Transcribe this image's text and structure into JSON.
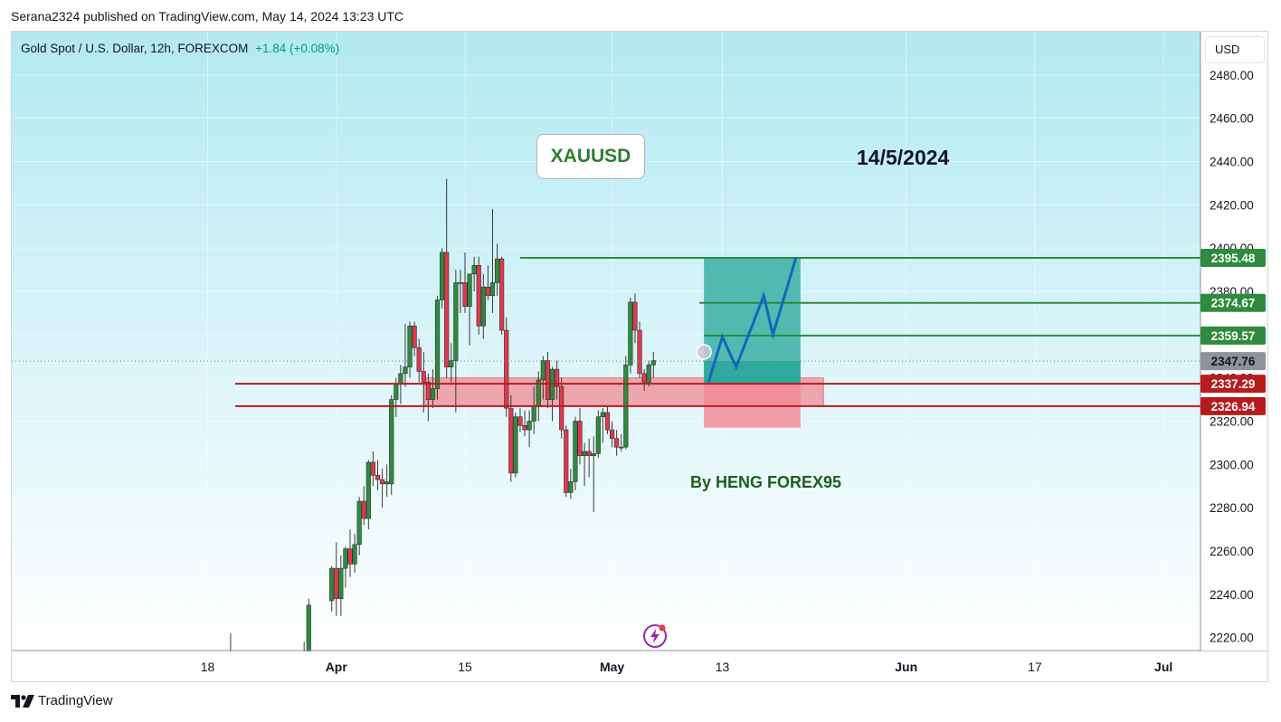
{
  "publisher_line": "Serana2324 published on TradingView.com, May 14, 2024 13:23 UTC",
  "header": {
    "symbol": "Gold Spot / U.S. Dollar, 12h, FOREXCOM",
    "change": "+1.84 (+0.08%)",
    "currency": "USD"
  },
  "annotations": {
    "ticker": "XAUUSD",
    "date": "14/5/2024",
    "author": "By HENG FOREX95"
  },
  "footer": {
    "brand": "TradingView"
  },
  "colors": {
    "bull": "#2e8b3e",
    "bear": "#e0384f",
    "green_line": "#2e8b3e",
    "red_line": "#b71c1c",
    "profit_zone": "#26a69a",
    "loss_zone": "#f28b96",
    "projection": "#1565c0",
    "sky_top": "#b3e9f2",
    "sky_bottom": "#ffffff"
  },
  "chart_data": {
    "type": "candlestick",
    "ylim": [
      2214,
      2500
    ],
    "y_ticks": [
      2220,
      2240,
      2260,
      2280,
      2300,
      2320,
      2340,
      2360,
      2380,
      2400,
      2420,
      2440,
      2460,
      2480
    ],
    "y_tick_labels": [
      "2220.00",
      "2240.00",
      "2260.00",
      "2280.00",
      "2300.00",
      "2320.00",
      "2340.00",
      "2360.00",
      "2380.00",
      "2400.00",
      "2420.00",
      "2440.00",
      "2460.00",
      "2480.00"
    ],
    "x_axis_labels": [
      {
        "label": "18",
        "day": -3
      },
      {
        "label": "Apr",
        "day": 11
      },
      {
        "label": "15",
        "day": 25
      },
      {
        "label": "May",
        "day": 41
      },
      {
        "label": "13",
        "day": 53
      },
      {
        "label": "Jun",
        "day": 73
      },
      {
        "label": "17",
        "day": 87
      },
      {
        "label": "Jul",
        "day": 101
      }
    ],
    "x_axis_note": "day = days since Mar 21, 2024; one candle every half day",
    "price_labels": [
      {
        "value": 2395.48,
        "text": "2395.48",
        "kind": "green"
      },
      {
        "value": 2374.67,
        "text": "2374.67",
        "kind": "green"
      },
      {
        "value": 2359.57,
        "text": "2359.57",
        "kind": "green"
      },
      {
        "value": 2347.76,
        "text": "2347.76",
        "kind": "current"
      },
      {
        "value": 2337.29,
        "text": "2337.29",
        "kind": "red"
      },
      {
        "value": 2326.94,
        "text": "2326.94",
        "kind": "red"
      }
    ],
    "support_zone": {
      "day_start": 20.5,
      "day_end": 64,
      "price_high": 2340,
      "price_low": 2327
    },
    "horizontal_lines": [
      {
        "day_start": 31,
        "price": 2395.48,
        "kind": "green"
      },
      {
        "day_start": 50.5,
        "price": 2374.67,
        "kind": "green"
      },
      {
        "day_start": 51,
        "price": 2359.57,
        "kind": "green"
      },
      {
        "day_start": 0,
        "price": 2337.29,
        "kind": "red"
      },
      {
        "day_start": 0,
        "price": 2326.94,
        "kind": "red"
      }
    ],
    "position": {
      "day_start": 51,
      "day_end": 61.5,
      "entry": 2337.29,
      "target": 2395.48,
      "stop": 2317,
      "filled_top": 2347.76
    },
    "projection_path": [
      {
        "day": 51.5,
        "price": 2338
      },
      {
        "day": 53,
        "price": 2359
      },
      {
        "day": 54.5,
        "price": 2345
      },
      {
        "day": 57.5,
        "price": 2378
      },
      {
        "day": 58.5,
        "price": 2360
      },
      {
        "day": 61,
        "price": 2395.48
      }
    ],
    "current_marker": {
      "day": 51,
      "price": 2352
    },
    "candles": [
      {
        "day": -0.5,
        "o": 2200,
        "h": 2222,
        "l": 2190,
        "c": 2210
      },
      {
        "day": 6.5,
        "o": 2190,
        "h": 2208,
        "l": 2182,
        "c": 2200
      },
      {
        "day": 7,
        "o": 2200,
        "h": 2212,
        "l": 2192,
        "c": 2205
      },
      {
        "day": 7.5,
        "o": 2205,
        "h": 2218,
        "l": 2198,
        "c": 2212
      },
      {
        "day": 8,
        "o": 2212,
        "h": 2238,
        "l": 2208,
        "c": 2235
      },
      {
        "day": 10.5,
        "o": 2237,
        "h": 2253,
        "l": 2232,
        "c": 2252
      },
      {
        "day": 11,
        "o": 2252,
        "h": 2264,
        "l": 2230,
        "c": 2238
      },
      {
        "day": 11.5,
        "o": 2238,
        "h": 2258,
        "l": 2230,
        "c": 2252
      },
      {
        "day": 12,
        "o": 2252,
        "h": 2262,
        "l": 2243,
        "c": 2261
      },
      {
        "day": 12.5,
        "o": 2261,
        "h": 2270,
        "l": 2248,
        "c": 2254
      },
      {
        "day": 13,
        "o": 2254,
        "h": 2268,
        "l": 2250,
        "c": 2263
      },
      {
        "day": 13.5,
        "o": 2263,
        "h": 2285,
        "l": 2258,
        "c": 2283
      },
      {
        "day": 14,
        "o": 2283,
        "h": 2290,
        "l": 2272,
        "c": 2275
      },
      {
        "day": 14.5,
        "o": 2275,
        "h": 2302,
        "l": 2270,
        "c": 2301
      },
      {
        "day": 15,
        "o": 2301,
        "h": 2306,
        "l": 2290,
        "c": 2295
      },
      {
        "day": 15.5,
        "o": 2295,
        "h": 2302,
        "l": 2288,
        "c": 2293
      },
      {
        "day": 16,
        "o": 2293,
        "h": 2298,
        "l": 2280,
        "c": 2291
      },
      {
        "day": 16.5,
        "o": 2291,
        "h": 2300,
        "l": 2285,
        "c": 2292
      },
      {
        "day": 17,
        "o": 2291,
        "h": 2332,
        "l": 2286,
        "c": 2330
      },
      {
        "day": 17.5,
        "o": 2330,
        "h": 2340,
        "l": 2322,
        "c": 2337
      },
      {
        "day": 18,
        "o": 2337,
        "h": 2346,
        "l": 2328,
        "c": 2342
      },
      {
        "day": 18.5,
        "o": 2342,
        "h": 2365,
        "l": 2336,
        "c": 2345
      },
      {
        "day": 19,
        "o": 2345,
        "h": 2366,
        "l": 2340,
        "c": 2364
      },
      {
        "day": 19.5,
        "o": 2364,
        "h": 2366,
        "l": 2350,
        "c": 2354
      },
      {
        "day": 20,
        "o": 2354,
        "h": 2358,
        "l": 2338,
        "c": 2343
      },
      {
        "day": 20.5,
        "o": 2343,
        "h": 2352,
        "l": 2324,
        "c": 2338
      },
      {
        "day": 21,
        "o": 2338,
        "h": 2342,
        "l": 2320,
        "c": 2330
      },
      {
        "day": 21.5,
        "o": 2330,
        "h": 2344,
        "l": 2326,
        "c": 2335
      },
      {
        "day": 22,
        "o": 2335,
        "h": 2378,
        "l": 2330,
        "c": 2376
      },
      {
        "day": 22.5,
        "o": 2376,
        "h": 2400,
        "l": 2372,
        "c": 2398
      },
      {
        "day": 23,
        "o": 2398,
        "h": 2432,
        "l": 2340,
        "c": 2345
      },
      {
        "day": 23.5,
        "o": 2345,
        "h": 2356,
        "l": 2338,
        "c": 2348
      },
      {
        "day": 24,
        "o": 2348,
        "h": 2390,
        "l": 2324,
        "c": 2384
      },
      {
        "day": 24.5,
        "o": 2384,
        "h": 2390,
        "l": 2370,
        "c": 2384
      },
      {
        "day": 25,
        "o": 2384,
        "h": 2398,
        "l": 2370,
        "c": 2373
      },
      {
        "day": 25.5,
        "o": 2373,
        "h": 2388,
        "l": 2355,
        "c": 2388
      },
      {
        "day": 26,
        "o": 2388,
        "h": 2396,
        "l": 2380,
        "c": 2392
      },
      {
        "day": 26.5,
        "o": 2392,
        "h": 2396,
        "l": 2360,
        "c": 2364
      },
      {
        "day": 27,
        "o": 2364,
        "h": 2388,
        "l": 2358,
        "c": 2382
      },
      {
        "day": 27.5,
        "o": 2382,
        "h": 2392,
        "l": 2376,
        "c": 2378
      },
      {
        "day": 28,
        "o": 2378,
        "h": 2418,
        "l": 2370,
        "c": 2384
      },
      {
        "day": 28.5,
        "o": 2384,
        "h": 2402,
        "l": 2378,
        "c": 2395
      },
      {
        "day": 29,
        "o": 2395,
        "h": 2396,
        "l": 2360,
        "c": 2362
      },
      {
        "day": 29.5,
        "o": 2362,
        "h": 2368,
        "l": 2322,
        "c": 2326
      },
      {
        "day": 30,
        "o": 2326,
        "h": 2332,
        "l": 2292,
        "c": 2296
      },
      {
        "day": 30.5,
        "o": 2296,
        "h": 2324,
        "l": 2294,
        "c": 2322
      },
      {
        "day": 31,
        "o": 2322,
        "h": 2326,
        "l": 2315,
        "c": 2318
      },
      {
        "day": 31.5,
        "o": 2318,
        "h": 2325,
        "l": 2313,
        "c": 2316
      },
      {
        "day": 32,
        "o": 2316,
        "h": 2325,
        "l": 2308,
        "c": 2320
      },
      {
        "day": 32.5,
        "o": 2320,
        "h": 2336,
        "l": 2314,
        "c": 2327
      },
      {
        "day": 33,
        "o": 2327,
        "h": 2343,
        "l": 2320,
        "c": 2339
      },
      {
        "day": 33.5,
        "o": 2339,
        "h": 2350,
        "l": 2330,
        "c": 2348
      },
      {
        "day": 34,
        "o": 2348,
        "h": 2352,
        "l": 2326,
        "c": 2330
      },
      {
        "day": 34.5,
        "o": 2330,
        "h": 2345,
        "l": 2320,
        "c": 2344
      },
      {
        "day": 35,
        "o": 2344,
        "h": 2348,
        "l": 2330,
        "c": 2336
      },
      {
        "day": 35.5,
        "o": 2336,
        "h": 2340,
        "l": 2312,
        "c": 2316
      },
      {
        "day": 36,
        "o": 2316,
        "h": 2318,
        "l": 2285,
        "c": 2287
      },
      {
        "day": 36.5,
        "o": 2287,
        "h": 2298,
        "l": 2284,
        "c": 2292
      },
      {
        "day": 37,
        "o": 2292,
        "h": 2322,
        "l": 2288,
        "c": 2320
      },
      {
        "day": 37.5,
        "o": 2320,
        "h": 2326,
        "l": 2300,
        "c": 2304
      },
      {
        "day": 38,
        "o": 2304,
        "h": 2310,
        "l": 2290,
        "c": 2306
      },
      {
        "day": 38.5,
        "o": 2306,
        "h": 2312,
        "l": 2294,
        "c": 2304
      },
      {
        "day": 39,
        "o": 2304,
        "h": 2313,
        "l": 2278,
        "c": 2305
      },
      {
        "day": 39.5,
        "o": 2305,
        "h": 2325,
        "l": 2303,
        "c": 2322
      },
      {
        "day": 40,
        "o": 2322,
        "h": 2326,
        "l": 2310,
        "c": 2324
      },
      {
        "day": 40.5,
        "o": 2324,
        "h": 2327,
        "l": 2314,
        "c": 2316
      },
      {
        "day": 41,
        "o": 2316,
        "h": 2320,
        "l": 2308,
        "c": 2312
      },
      {
        "day": 41.5,
        "o": 2312,
        "h": 2316,
        "l": 2304,
        "c": 2308
      },
      {
        "day": 42,
        "o": 2308,
        "h": 2314,
        "l": 2306,
        "c": 2308
      },
      {
        "day": 42.5,
        "o": 2308,
        "h": 2350,
        "l": 2307,
        "c": 2346
      },
      {
        "day": 43,
        "o": 2346,
        "h": 2377,
        "l": 2342,
        "c": 2375
      },
      {
        "day": 43.5,
        "o": 2375,
        "h": 2379,
        "l": 2356,
        "c": 2362
      },
      {
        "day": 44,
        "o": 2362,
        "h": 2366,
        "l": 2340,
        "c": 2342
      },
      {
        "day": 44.5,
        "o": 2342,
        "h": 2344,
        "l": 2334,
        "c": 2338
      },
      {
        "day": 45,
        "o": 2338,
        "h": 2348,
        "l": 2336,
        "c": 2346
      },
      {
        "day": 45.5,
        "o": 2346,
        "h": 2352,
        "l": 2340,
        "c": 2348
      }
    ]
  }
}
